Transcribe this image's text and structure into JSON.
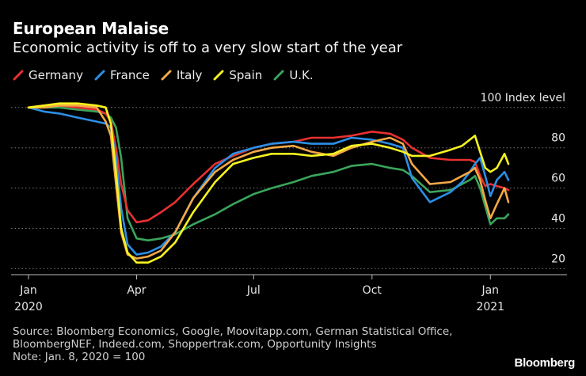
{
  "header": {
    "title": "European Malaise",
    "subtitle": "Economic activity is off to a very slow start of the year"
  },
  "footer": {
    "source_line1": "Source: Bloomberg Economics, Google, Moovitapp.com, German Statistical Office,",
    "source_line2": "BloombergNEF, Indeed.com, Shoppertrak.com, Opportunity Insights",
    "note": "Note: Jan. 8, 2020 = 100",
    "brand": "Bloomberg"
  },
  "chart_data": {
    "type": "line",
    "title": "European Malaise",
    "subtitle": "Economic activity is off to a very slow start of the year",
    "ylabel": "100 Index level",
    "ylim": [
      17,
      107
    ],
    "yticks": [
      20,
      40,
      60,
      80,
      100
    ],
    "ytick_labels": [
      "20",
      "40",
      "60",
      "80",
      "100 Index level"
    ],
    "xlim": [
      "2020-01-08",
      "2021-01-31"
    ],
    "xticks": [
      "2020-01-08",
      "2020-04-01",
      "2020-07-01",
      "2020-10-01",
      "2021-01-01"
    ],
    "xtick_labels": [
      "Jan",
      "Apr",
      "Jul",
      "Oct",
      "Jan"
    ],
    "xtick_years": [
      "2020",
      "",
      "",
      "",
      "2021"
    ],
    "grid": "horizontal dotted",
    "legend": "top-left",
    "series": [
      {
        "name": "Germany",
        "color": "#e8312f",
        "x": [
          "2020-01-08",
          "2020-01-20",
          "2020-02-01",
          "2020-02-15",
          "2020-03-01",
          "2020-03-08",
          "2020-03-12",
          "2020-03-16",
          "2020-03-20",
          "2020-03-25",
          "2020-04-01",
          "2020-04-10",
          "2020-04-20",
          "2020-05-01",
          "2020-05-15",
          "2020-06-01",
          "2020-06-15",
          "2020-07-01",
          "2020-07-15",
          "2020-08-01",
          "2020-08-15",
          "2020-09-01",
          "2020-09-15",
          "2020-10-01",
          "2020-10-15",
          "2020-10-25",
          "2020-11-01",
          "2020-11-15",
          "2020-12-01",
          "2020-12-10",
          "2020-12-16",
          "2020-12-20",
          "2020-12-24",
          "2020-12-28",
          "2021-01-01",
          "2021-01-06",
          "2021-01-12",
          "2021-01-15"
        ],
        "y": [
          100,
          101,
          101,
          100,
          99,
          97,
          93,
          80,
          62,
          49,
          43,
          44,
          48,
          53,
          62,
          72,
          76,
          80,
          82,
          83,
          85,
          85,
          86,
          88,
          87,
          84,
          80,
          75,
          74,
          74,
          74,
          73,
          66,
          61,
          62,
          61,
          60,
          59
        ]
      },
      {
        "name": "France",
        "color": "#2b8fe6",
        "x": [
          "2020-01-08",
          "2020-01-20",
          "2020-02-01",
          "2020-02-15",
          "2020-03-01",
          "2020-03-08",
          "2020-03-12",
          "2020-03-16",
          "2020-03-20",
          "2020-03-25",
          "2020-04-01",
          "2020-04-10",
          "2020-04-20",
          "2020-05-01",
          "2020-05-15",
          "2020-06-01",
          "2020-06-15",
          "2020-07-01",
          "2020-07-15",
          "2020-08-01",
          "2020-08-15",
          "2020-09-01",
          "2020-09-15",
          "2020-10-01",
          "2020-10-15",
          "2020-10-25",
          "2020-11-01",
          "2020-11-15",
          "2020-12-01",
          "2020-12-10",
          "2020-12-16",
          "2020-12-20",
          "2020-12-24",
          "2020-12-28",
          "2021-01-01",
          "2021-01-06",
          "2021-01-12",
          "2021-01-15"
        ],
        "y": [
          100,
          98,
          97,
          95,
          93,
          92,
          90,
          75,
          50,
          32,
          27,
          28,
          31,
          38,
          55,
          70,
          77,
          80,
          82,
          83,
          82,
          82,
          85,
          84,
          82,
          80,
          65,
          53,
          58,
          63,
          68,
          72,
          75,
          66,
          56,
          64,
          68,
          64
        ]
      },
      {
        "name": "Italy",
        "color": "#f5a945",
        "x": [
          "2020-01-08",
          "2020-01-20",
          "2020-02-01",
          "2020-02-15",
          "2020-03-01",
          "2020-03-08",
          "2020-03-12",
          "2020-03-16",
          "2020-03-20",
          "2020-03-25",
          "2020-04-01",
          "2020-04-10",
          "2020-04-20",
          "2020-05-01",
          "2020-05-15",
          "2020-06-01",
          "2020-06-15",
          "2020-07-01",
          "2020-07-15",
          "2020-08-01",
          "2020-08-15",
          "2020-09-01",
          "2020-09-15",
          "2020-10-01",
          "2020-10-15",
          "2020-10-25",
          "2020-11-01",
          "2020-11-15",
          "2020-12-01",
          "2020-12-10",
          "2020-12-16",
          "2020-12-20",
          "2020-12-24",
          "2020-12-28",
          "2021-01-01",
          "2021-01-06",
          "2021-01-12",
          "2021-01-15"
        ],
        "y": [
          100,
          100,
          101,
          101,
          100,
          93,
          86,
          62,
          38,
          27,
          25,
          26,
          29,
          38,
          55,
          68,
          74,
          78,
          80,
          81,
          78,
          76,
          80,
          83,
          85,
          82,
          72,
          62,
          63,
          66,
          68,
          70,
          64,
          54,
          45,
          52,
          60,
          53
        ]
      },
      {
        "name": "Spain",
        "color": "#f7f31f",
        "x": [
          "2020-01-08",
          "2020-01-20",
          "2020-02-01",
          "2020-02-15",
          "2020-03-01",
          "2020-03-08",
          "2020-03-12",
          "2020-03-16",
          "2020-03-20",
          "2020-03-25",
          "2020-04-01",
          "2020-04-10",
          "2020-04-20",
          "2020-05-01",
          "2020-05-15",
          "2020-06-01",
          "2020-06-15",
          "2020-07-01",
          "2020-07-15",
          "2020-08-01",
          "2020-08-15",
          "2020-09-01",
          "2020-09-15",
          "2020-10-01",
          "2020-10-15",
          "2020-10-25",
          "2020-11-01",
          "2020-11-15",
          "2020-12-01",
          "2020-12-10",
          "2020-12-16",
          "2020-12-20",
          "2020-12-24",
          "2020-12-28",
          "2021-01-01",
          "2021-01-06",
          "2021-01-12",
          "2021-01-15"
        ],
        "y": [
          100,
          101,
          102,
          102,
          101,
          100,
          92,
          68,
          40,
          28,
          23,
          23,
          26,
          33,
          48,
          63,
          72,
          75,
          77,
          77,
          76,
          77,
          81,
          82,
          80,
          78,
          76,
          76,
          79,
          81,
          84,
          86,
          78,
          70,
          68,
          70,
          77,
          72
        ]
      },
      {
        "name": "U.K.",
        "color": "#3aa55c",
        "x": [
          "2020-01-08",
          "2020-01-20",
          "2020-02-01",
          "2020-02-15",
          "2020-03-01",
          "2020-03-08",
          "2020-03-12",
          "2020-03-16",
          "2020-03-20",
          "2020-03-25",
          "2020-04-01",
          "2020-04-10",
          "2020-04-20",
          "2020-05-01",
          "2020-05-15",
          "2020-06-01",
          "2020-06-15",
          "2020-07-01",
          "2020-07-15",
          "2020-08-01",
          "2020-08-15",
          "2020-09-01",
          "2020-09-15",
          "2020-10-01",
          "2020-10-15",
          "2020-10-25",
          "2020-11-01",
          "2020-11-15",
          "2020-12-01",
          "2020-12-10",
          "2020-12-16",
          "2020-12-20",
          "2020-12-24",
          "2020-12-28",
          "2021-01-01",
          "2021-01-06",
          "2021-01-12",
          "2021-01-15"
        ],
        "y": [
          100,
          100,
          100,
          99,
          98,
          97,
          95,
          90,
          75,
          45,
          35,
          34,
          35,
          37,
          42,
          47,
          52,
          57,
          60,
          63,
          66,
          68,
          71,
          72,
          70,
          69,
          66,
          58,
          59,
          62,
          64,
          66,
          60,
          51,
          42,
          45,
          45,
          47
        ]
      }
    ]
  }
}
